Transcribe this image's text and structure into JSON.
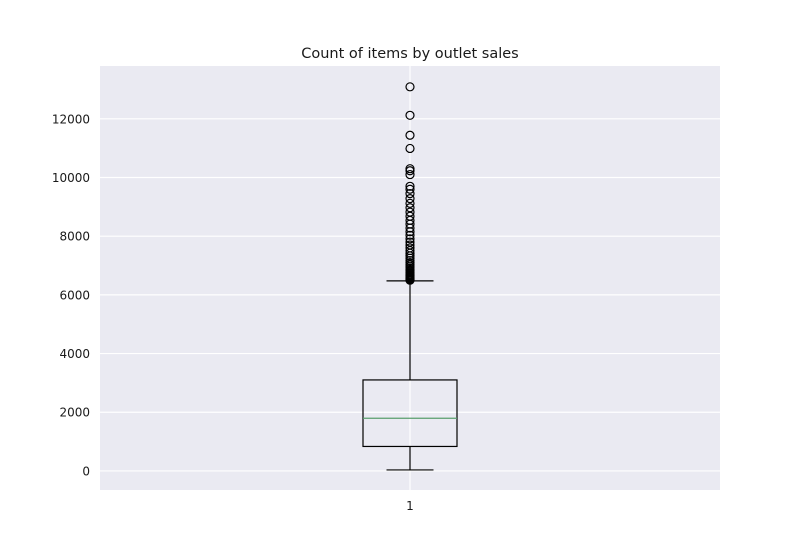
{
  "chart_data": {
    "type": "box",
    "title": "Count of items by outlet sales",
    "xlabel": "",
    "ylabel": "",
    "categories": [
      "1"
    ],
    "ylim": [
      -650,
      13800
    ],
    "yticks": [
      0,
      2000,
      4000,
      6000,
      8000,
      10000,
      12000
    ],
    "grid": true,
    "box": {
      "whisker_low": 33,
      "q1": 834,
      "median": 1794,
      "q3": 3101,
      "whisker_high": 6478
    },
    "outliers": [
      6500,
      6520,
      6540,
      6560,
      6580,
      6610,
      6640,
      6670,
      6700,
      6740,
      6780,
      6820,
      6870,
      6920,
      6980,
      7040,
      7100,
      7170,
      7250,
      7330,
      7420,
      7510,
      7600,
      7700,
      7800,
      7910,
      8030,
      8150,
      8280,
      8410,
      8540,
      8680,
      8820,
      8970,
      9120,
      9280,
      9450,
      9600,
      9700,
      10100,
      10230,
      10300,
      10990,
      11440,
      12120,
      13090
    ],
    "colors": {
      "plot_background": "#eaeaf2",
      "grid": "#ffffff",
      "box": "#000000",
      "median": "#5a9e6e"
    }
  }
}
